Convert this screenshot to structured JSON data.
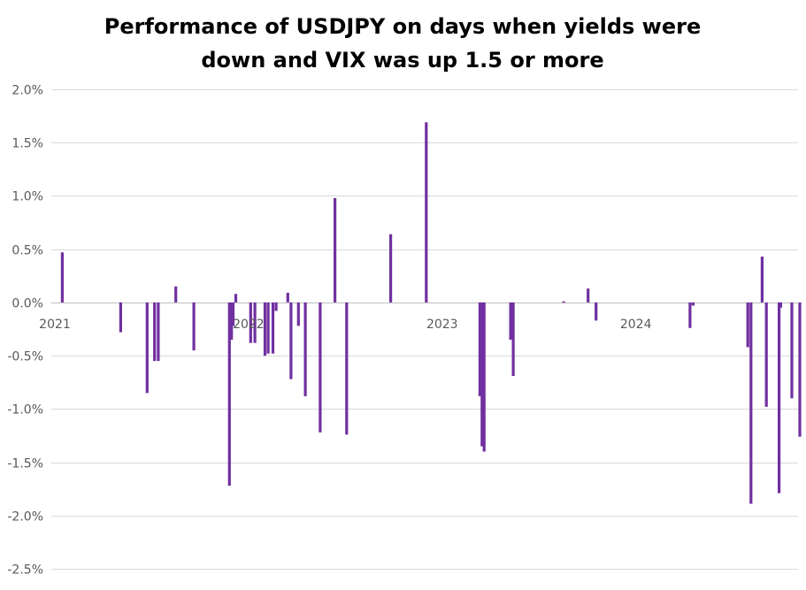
{
  "chart_data": {
    "type": "bar",
    "title_lines": [
      "Performance of USDJPY on days when yields were",
      "down and VIX was up 1.5 or more"
    ],
    "xlabel": "",
    "ylabel": "",
    "x_ticks": [
      "2021",
      "2022",
      "2023",
      "2024"
    ],
    "x_tick_dates": [
      "2021-01-01",
      "2022-01-01",
      "2023-01-01",
      "2024-01-01"
    ],
    "y_ticks": [
      "2.0%",
      "1.5%",
      "1.0%",
      "0.5%",
      "0.0%",
      "-0.5%",
      "-1.0%",
      "-1.5%",
      "-2.0%",
      "-2.5%"
    ],
    "y_tick_values": [
      2.0,
      1.5,
      1.0,
      0.5,
      0.0,
      -0.5,
      -1.0,
      -1.5,
      -2.0,
      -2.5
    ],
    "ylim": [
      -2.5,
      2.0
    ],
    "xlim": [
      "2021-01-01",
      "2024-10-01"
    ],
    "value_unit": "%",
    "grid": true,
    "legend": "none",
    "bar_color": "#7030a0",
    "series": [
      {
        "points": [
          {
            "date": "2021-01-15",
            "value": 0.47
          },
          {
            "date": "2021-05-05",
            "value": -0.28
          },
          {
            "date": "2021-06-24",
            "value": -0.85
          },
          {
            "date": "2021-07-08",
            "value": -0.55
          },
          {
            "date": "2021-07-15",
            "value": -0.55
          },
          {
            "date": "2021-08-17",
            "value": 0.15
          },
          {
            "date": "2021-09-20",
            "value": -0.45
          },
          {
            "date": "2021-11-26",
            "value": -1.72
          },
          {
            "date": "2021-11-30",
            "value": -0.35
          },
          {
            "date": "2021-12-03",
            "value": -0.22
          },
          {
            "date": "2021-12-08",
            "value": 0.08
          },
          {
            "date": "2022-01-05",
            "value": -0.38
          },
          {
            "date": "2022-01-13",
            "value": -0.38
          },
          {
            "date": "2022-02-01",
            "value": -0.5
          },
          {
            "date": "2022-02-07",
            "value": -0.48
          },
          {
            "date": "2022-02-16",
            "value": -0.48
          },
          {
            "date": "2022-02-22",
            "value": -0.08
          },
          {
            "date": "2022-03-16",
            "value": 0.09
          },
          {
            "date": "2022-03-22",
            "value": -0.72
          },
          {
            "date": "2022-04-05",
            "value": -0.22
          },
          {
            "date": "2022-04-18",
            "value": -0.88
          },
          {
            "date": "2022-05-16",
            "value": -1.22
          },
          {
            "date": "2022-06-13",
            "value": 0.98
          },
          {
            "date": "2022-07-05",
            "value": -1.24
          },
          {
            "date": "2022-09-26",
            "value": 0.64
          },
          {
            "date": "2022-12-02",
            "value": 1.69
          },
          {
            "date": "2023-03-13",
            "value": -0.88
          },
          {
            "date": "2023-03-17",
            "value": -1.35
          },
          {
            "date": "2023-03-21",
            "value": -1.4
          },
          {
            "date": "2023-05-10",
            "value": -0.35
          },
          {
            "date": "2023-05-15",
            "value": -0.69
          },
          {
            "date": "2023-08-18",
            "value": 0.01
          },
          {
            "date": "2023-10-03",
            "value": 0.13
          },
          {
            "date": "2023-10-18",
            "value": -0.17
          },
          {
            "date": "2024-04-12",
            "value": -0.24
          },
          {
            "date": "2024-04-18",
            "value": -0.03
          },
          {
            "date": "2024-07-30",
            "value": -0.42
          },
          {
            "date": "2024-08-05",
            "value": -1.89
          },
          {
            "date": "2024-08-26",
            "value": 0.43
          },
          {
            "date": "2024-09-03",
            "value": -0.98
          },
          {
            "date": "2024-09-27",
            "value": -1.79
          },
          {
            "date": "2024-09-30",
            "value": -0.05
          },
          {
            "date": "2024-10-21",
            "value": -0.9
          },
          {
            "date": "2024-11-05",
            "value": -1.26
          }
        ]
      }
    ]
  }
}
